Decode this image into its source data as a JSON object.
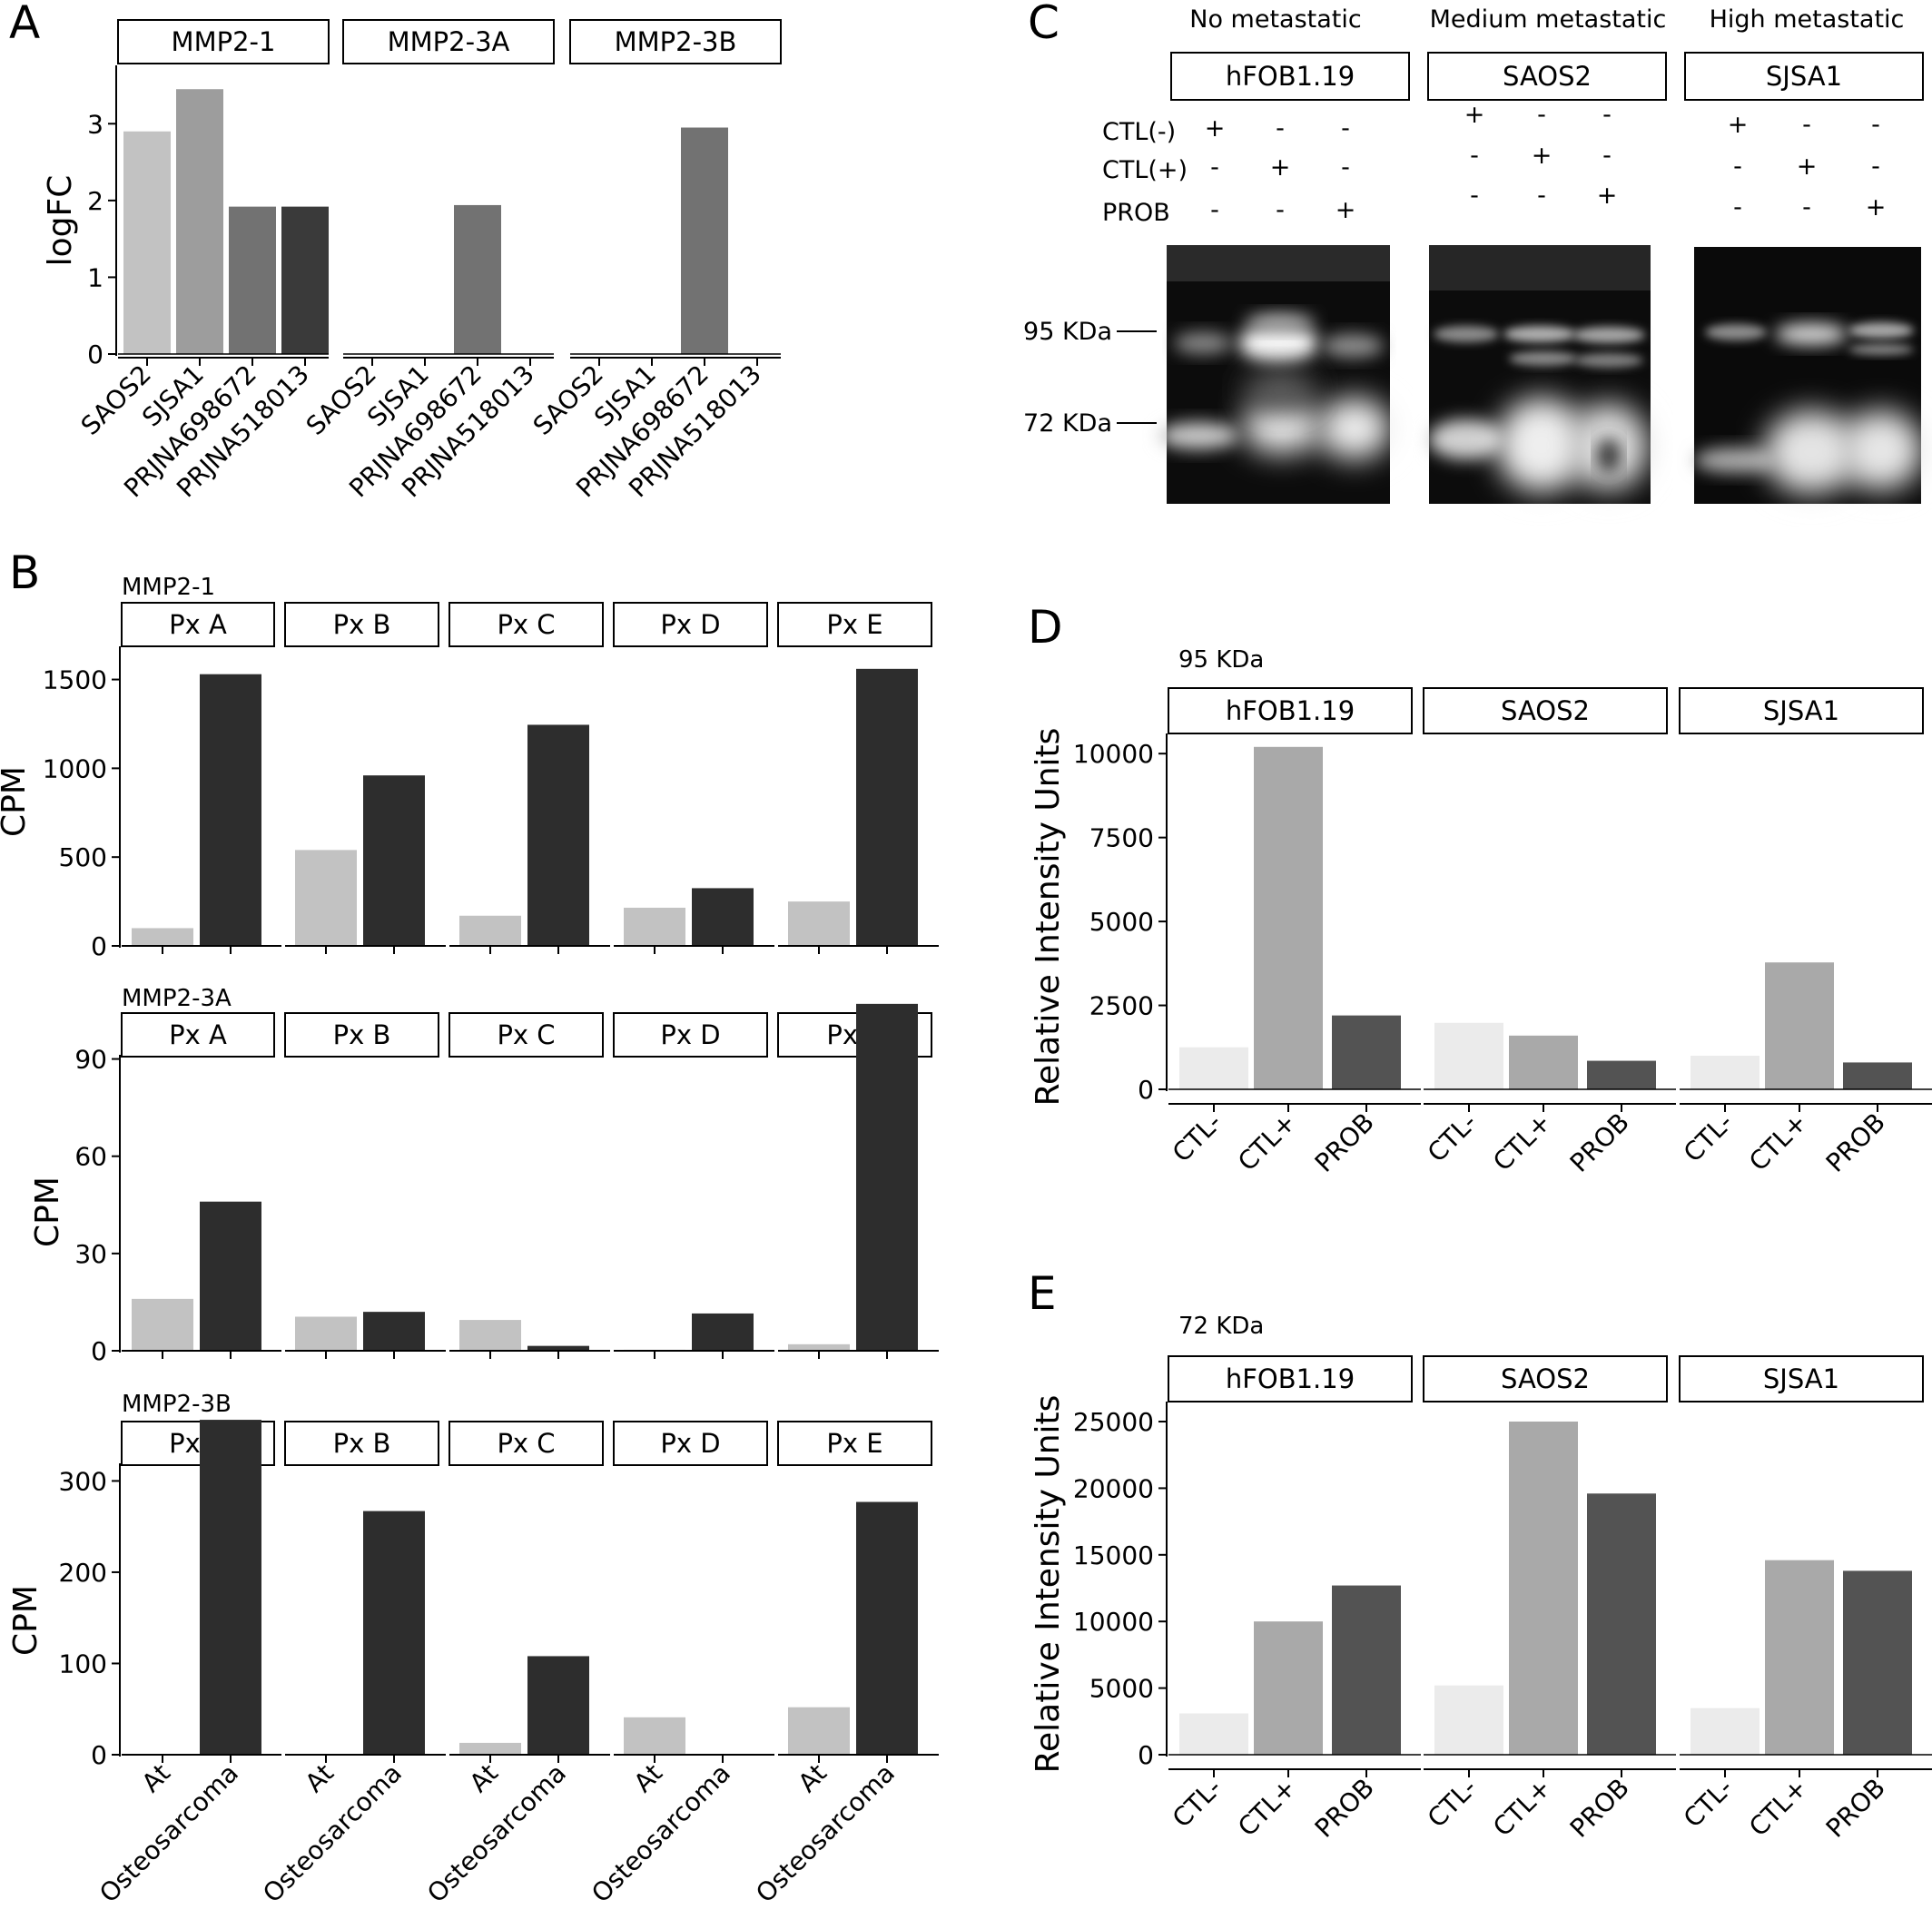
{
  "panels": {
    "A": {
      "letter": "A"
    },
    "B": {
      "letter": "B"
    },
    "C": {
      "letter": "C"
    },
    "D": {
      "letter": "D"
    },
    "E": {
      "letter": "E"
    }
  },
  "chart_data": [
    {
      "id": "A",
      "type": "bar",
      "ylabel": "logFC",
      "ylim": [
        0,
        3.5
      ],
      "yticks": [
        0,
        1,
        2,
        3
      ],
      "categories": [
        "SAOS2",
        "SJSA1",
        "PRJNA698672",
        "PRJNA518013"
      ],
      "colors": [
        "#c2c2c2",
        "#9d9d9d",
        "#727272",
        "#3a3a3a"
      ],
      "facets": [
        {
          "label": "MMP2-1",
          "values": [
            2.9,
            3.45,
            1.92,
            1.92
          ]
        },
        {
          "label": "MMP2-3A",
          "values": [
            0,
            0,
            1.94,
            0
          ]
        },
        {
          "label": "MMP2-3B",
          "values": [
            0,
            0,
            2.95,
            0
          ]
        }
      ]
    },
    {
      "id": "B",
      "type": "bar",
      "ylabel": "CPM",
      "categories": [
        "At",
        "Osteosarcoma"
      ],
      "colors": [
        "#c2c2c2",
        "#2d2d2d"
      ],
      "rows": [
        {
          "title": "MMP2-1",
          "yticks": [
            0,
            500,
            1000,
            1500
          ],
          "ylim": [
            0,
            1600
          ],
          "facets": [
            {
              "label": "Px A",
              "values": [
                100,
                1530
              ]
            },
            {
              "label": "Px B",
              "values": [
                540,
                960
              ]
            },
            {
              "label": "Px C",
              "values": [
                170,
                1245
              ]
            },
            {
              "label": "Px D",
              "values": [
                215,
                325
              ]
            },
            {
              "label": "Px E",
              "values": [
                250,
                1560
              ]
            }
          ]
        },
        {
          "title": "MMP2-3A",
          "yticks": [
            0,
            30,
            60,
            90
          ],
          "ylim": [
            0,
            112
          ],
          "facets": [
            {
              "label": "Px A",
              "values": [
                16,
                46
              ]
            },
            {
              "label": "Px B",
              "values": [
                10.5,
                12
              ]
            },
            {
              "label": "Px C",
              "values": [
                9.5,
                1.5
              ]
            },
            {
              "label": "Px D",
              "values": [
                0.3,
                11.5
              ]
            },
            {
              "label": "Px E",
              "values": [
                2,
                107
              ]
            }
          ]
        },
        {
          "title": "MMP2-3B",
          "yticks": [
            0,
            100,
            200,
            300
          ],
          "ylim": [
            0,
            380
          ],
          "facets": [
            {
              "label": "Px A",
              "values": [
                1,
                367
              ]
            },
            {
              "label": "Px B",
              "values": [
                1,
                267
              ]
            },
            {
              "label": "Px C",
              "values": [
                13,
                108
              ]
            },
            {
              "label": "Px D",
              "values": [
                41,
                1
              ]
            },
            {
              "label": "Px E",
              "values": [
                52,
                277
              ]
            }
          ]
        }
      ]
    },
    {
      "id": "D",
      "type": "bar",
      "title": "95 KDa",
      "ylabel": "Relative Intensity Units",
      "ylim": [
        0,
        10600
      ],
      "yticks": [
        0,
        2500,
        5000,
        7500,
        10000
      ],
      "categories": [
        "CTL-",
        "CTL+",
        "PROB"
      ],
      "colors": [
        "#ebebeb",
        "#a9a9a9",
        "#535353"
      ],
      "facets": [
        {
          "label": "hFOB1.19",
          "values": [
            1250,
            10200,
            2200
          ]
        },
        {
          "label": "SAOS2",
          "values": [
            1980,
            1600,
            850
          ]
        },
        {
          "label": "SJSA1",
          "values": [
            1000,
            3780,
            800
          ]
        }
      ]
    },
    {
      "id": "E",
      "type": "bar",
      "title": "72 KDa",
      "ylabel": "Relative Intensity Units",
      "ylim": [
        0,
        26500
      ],
      "yticks": [
        0,
        5000,
        10000,
        15000,
        20000,
        25000
      ],
      "categories": [
        "CTL-",
        "CTL+",
        "PROB"
      ],
      "colors": [
        "#ebebeb",
        "#a9a9a9",
        "#535353"
      ],
      "facets": [
        {
          "label": "hFOB1.19",
          "values": [
            3100,
            10000,
            12700
          ]
        },
        {
          "label": "SAOS2",
          "values": [
            5200,
            25000,
            19600
          ]
        },
        {
          "label": "SJSA1",
          "values": [
            3500,
            14600,
            13800
          ]
        }
      ]
    }
  ],
  "blot": {
    "groups": [
      {
        "title": "No metastatic",
        "cell": "hFOB1.19"
      },
      {
        "title": "Medium metastatic",
        "cell": "SAOS2"
      },
      {
        "title": "High metastatic",
        "cell": "SJSA1"
      }
    ],
    "row_labels": [
      "CTL(-)",
      "CTL(+)",
      "PROB"
    ],
    "signs": [
      [
        "+",
        "-",
        "-"
      ],
      [
        "-",
        "+",
        "-"
      ],
      [
        "-",
        "-",
        "+"
      ]
    ],
    "markers": [
      "95 KDa",
      "72 KDa"
    ]
  }
}
